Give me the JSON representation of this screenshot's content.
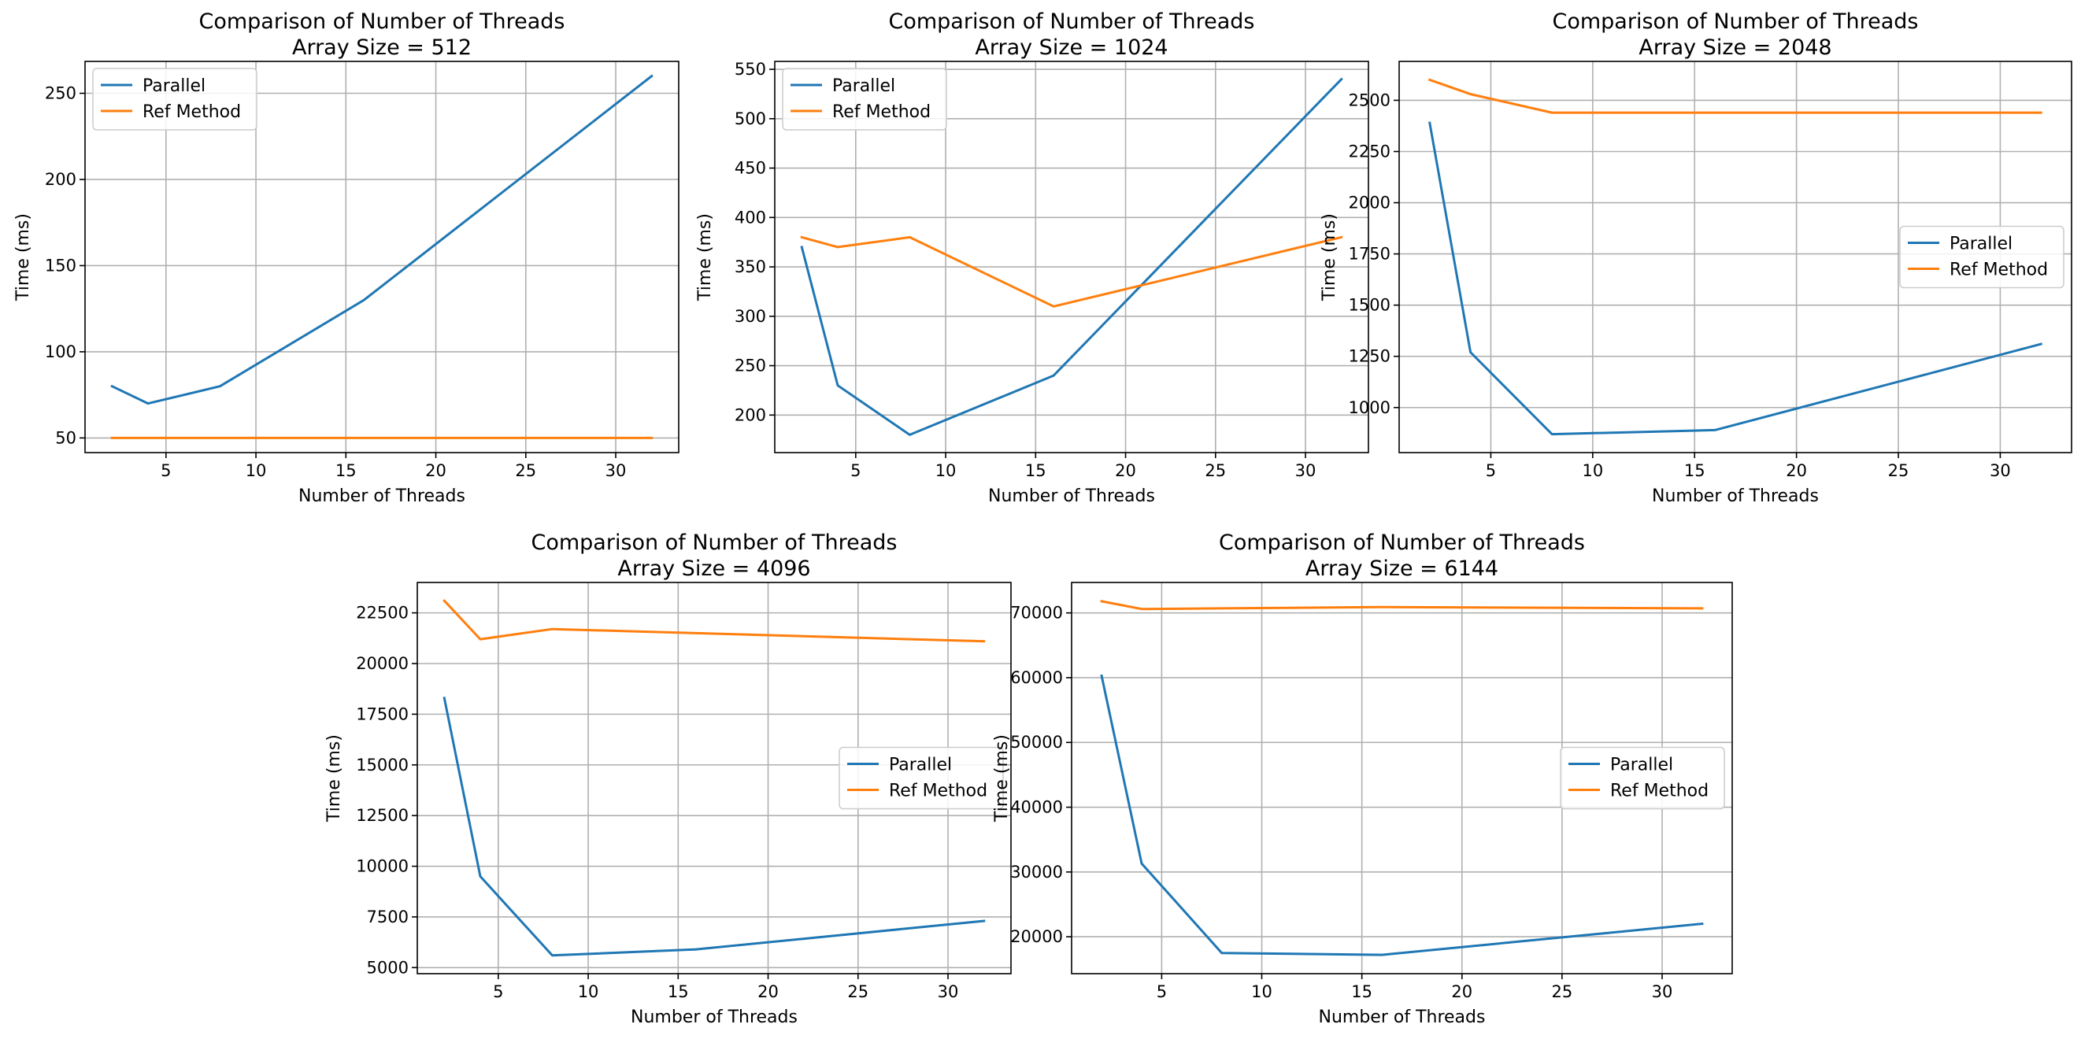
{
  "figure": {
    "background": "#ffffff",
    "colors": {
      "parallel": "#1f77b4",
      "ref": "#ff7f0e",
      "grid": "#b0b0b0"
    }
  },
  "chart_data": [
    {
      "type": "line",
      "title": "Comparison of Number of Threads",
      "subtitle": "Array Size = 512",
      "xlabel": "Number of Threads",
      "ylabel": "Time (ms)",
      "xlim": [
        0.5,
        33.5
      ],
      "ylim": [
        41.5,
        268.5
      ],
      "xticks": [
        5,
        10,
        15,
        20,
        25,
        30
      ],
      "yticks": [
        50,
        100,
        150,
        200,
        250
      ],
      "grid": true,
      "legend_position": "upper left",
      "x": [
        2,
        4,
        8,
        16,
        32
      ],
      "series": [
        {
          "name": "Parallel",
          "color": "#1f77b4",
          "values": [
            80,
            70,
            80,
            130,
            260
          ]
        },
        {
          "name": "Ref Method",
          "color": "#ff7f0e",
          "values": [
            50,
            50,
            50,
            50,
            50
          ]
        }
      ]
    },
    {
      "type": "line",
      "title": "Comparison of Number of Threads",
      "subtitle": "Array Size = 1024",
      "xlabel": "Number of Threads",
      "ylabel": "Time (ms)",
      "xlim": [
        0.5,
        33.5
      ],
      "ylim": [
        162,
        558
      ],
      "xticks": [
        5,
        10,
        15,
        20,
        25,
        30
      ],
      "yticks": [
        200,
        250,
        300,
        350,
        400,
        450,
        500,
        550
      ],
      "grid": true,
      "legend_position": "upper left",
      "x": [
        2,
        4,
        8,
        16,
        32
      ],
      "series": [
        {
          "name": "Parallel",
          "color": "#1f77b4",
          "values": [
            370,
            230,
            180,
            240,
            540
          ]
        },
        {
          "name": "Ref Method",
          "color": "#ff7f0e",
          "values": [
            380,
            370,
            380,
            310,
            380
          ]
        }
      ]
    },
    {
      "type": "line",
      "title": "Comparison of Number of Threads",
      "subtitle": "Array Size = 2048",
      "xlabel": "Number of Threads",
      "ylabel": "Time (ms)",
      "xlim": [
        0.5,
        33.5
      ],
      "ylim": [
        780,
        2690
      ],
      "xticks": [
        5,
        10,
        15,
        20,
        25,
        30
      ],
      "yticks": [
        1000,
        1250,
        1500,
        1750,
        2000,
        2250,
        2500
      ],
      "grid": true,
      "legend_position": "center right",
      "x": [
        2,
        4,
        8,
        16,
        32
      ],
      "series": [
        {
          "name": "Parallel",
          "color": "#1f77b4",
          "values": [
            2390,
            1270,
            870,
            890,
            1310
          ]
        },
        {
          "name": "Ref Method",
          "color": "#ff7f0e",
          "values": [
            2600,
            2530,
            2440,
            2440,
            2440
          ]
        }
      ]
    },
    {
      "type": "line",
      "title": "Comparison of Number of Threads",
      "subtitle": "Array Size = 4096",
      "xlabel": "Number of Threads",
      "ylabel": "Time (ms)",
      "xlim": [
        0.5,
        33.5
      ],
      "ylim": [
        4700,
        24000
      ],
      "xticks": [
        5,
        10,
        15,
        20,
        25,
        30
      ],
      "yticks": [
        5000,
        7500,
        10000,
        12500,
        15000,
        17500,
        20000,
        22500
      ],
      "grid": true,
      "legend_position": "center right",
      "x": [
        2,
        4,
        8,
        16,
        32
      ],
      "series": [
        {
          "name": "Parallel",
          "color": "#1f77b4",
          "values": [
            18300,
            9500,
            5600,
            5900,
            7300
          ]
        },
        {
          "name": "Ref Method",
          "color": "#ff7f0e",
          "values": [
            23100,
            21200,
            21700,
            21500,
            21100
          ]
        }
      ]
    },
    {
      "type": "line",
      "title": "Comparison of Number of Threads",
      "subtitle": "Array Size = 6144",
      "xlabel": "Number of Threads",
      "ylabel": "Time (ms)",
      "xlim": [
        0.5,
        33.5
      ],
      "ylim": [
        14300,
        74700
      ],
      "xticks": [
        5,
        10,
        15,
        20,
        25,
        30
      ],
      "yticks": [
        20000,
        30000,
        40000,
        50000,
        60000,
        70000
      ],
      "grid": true,
      "legend_position": "center right",
      "x": [
        2,
        4,
        8,
        16,
        32
      ],
      "series": [
        {
          "name": "Parallel",
          "color": "#1f77b4",
          "values": [
            60300,
            31300,
            17500,
            17200,
            22000
          ]
        },
        {
          "name": "Ref Method",
          "color": "#ff7f0e",
          "values": [
            71800,
            70600,
            70700,
            70900,
            70700
          ]
        }
      ]
    }
  ]
}
